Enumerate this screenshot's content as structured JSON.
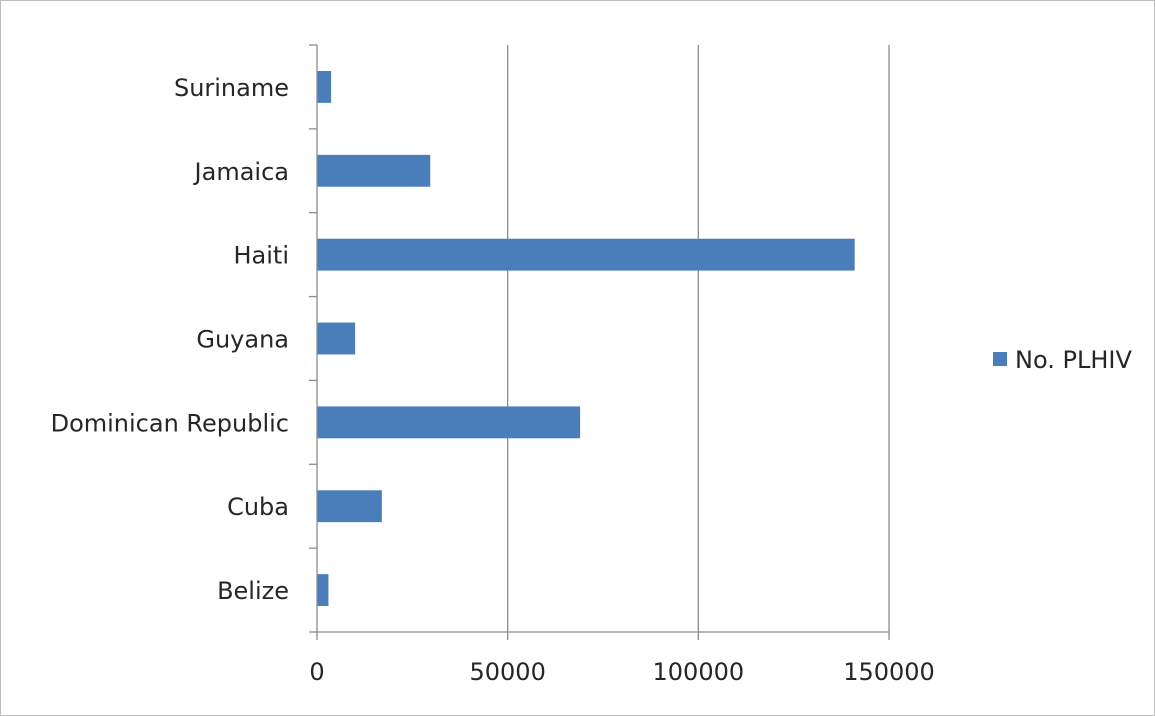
{
  "chart_data": {
    "type": "bar",
    "orientation": "horizontal",
    "categories": [
      "Belize",
      "Cuba",
      "Dominican Republic",
      "Guyana",
      "Haiti",
      "Jamaica",
      "Suriname"
    ],
    "series": [
      {
        "name": "No. PLHIV",
        "values": [
          3000,
          17000,
          69000,
          10000,
          141000,
          29700,
          3700
        ],
        "color": "#4a7ebb"
      }
    ],
    "xlim": [
      0,
      150000
    ],
    "xticks": [
      0,
      50000,
      100000,
      150000
    ],
    "xtick_labels": [
      "0",
      "50000",
      "100000",
      "150000"
    ],
    "grid": "vertical",
    "legend_position": "right"
  }
}
